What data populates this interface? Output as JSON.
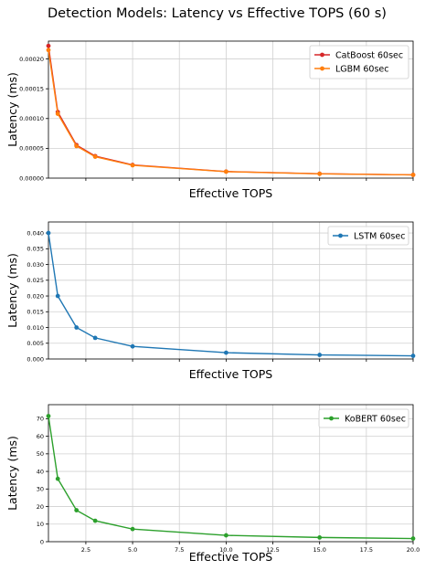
{
  "title": "Detection Models: Latency vs Effective TOPS (60 s)",
  "colors": {
    "catboost": "#d62728",
    "lgbm": "#ff7f0e",
    "lstm": "#1f77b4",
    "kobert": "#2ca02c"
  },
  "chart_data": [
    {
      "type": "line",
      "xlabel": "Effective TOPS",
      "ylabel": "Latency (ms)",
      "xlim": [
        0.5,
        20
      ],
      "ylim": [
        0,
        0.00023
      ],
      "x_ticks": [
        2.5,
        5.0,
        7.5,
        10.0,
        12.5,
        15.0,
        17.5,
        20.0
      ],
      "x_tick_labels": [],
      "y_ticks": [
        0,
        5e-05,
        0.0001,
        0.00015,
        0.0002
      ],
      "y_tick_labels": [
        "0.00000",
        "0.00005",
        "0.00010",
        "0.00015",
        "0.00020"
      ],
      "grid": true,
      "legend": "top-right",
      "series": [
        {
          "name": "CatBoost 60sec",
          "color": "#d62728",
          "x": [
            0.5,
            1,
            2,
            3,
            5,
            10,
            15,
            20
          ],
          "values": [
            0.000222,
            0.000111,
            5.55e-05,
            3.7e-05,
            2.22e-05,
            1.11e-05,
            7.4e-06,
            5.5e-06
          ]
        },
        {
          "name": "LGBM 60sec",
          "color": "#ff7f0e",
          "x": [
            0.5,
            1,
            2,
            3,
            5,
            10,
            15,
            20
          ],
          "values": [
            0.000215,
            0.000108,
            5.38e-05,
            3.59e-05,
            2.15e-05,
            1.08e-05,
            7.2e-06,
            5.4e-06
          ]
        }
      ]
    },
    {
      "type": "line",
      "xlabel": "Effective TOPS",
      "ylabel": "Latency (ms)",
      "xlim": [
        0.5,
        20
      ],
      "ylim": [
        0,
        0.0435
      ],
      "x_ticks": [
        2.5,
        5.0,
        7.5,
        10.0,
        12.5,
        15.0,
        17.5,
        20.0
      ],
      "x_tick_labels": [],
      "y_ticks": [
        0,
        0.005,
        0.01,
        0.015,
        0.02,
        0.025,
        0.03,
        0.035,
        0.04
      ],
      "y_tick_labels": [
        "0.000",
        "0.005",
        "0.010",
        "0.015",
        "0.020",
        "0.025",
        "0.030",
        "0.035",
        "0.040"
      ],
      "grid": true,
      "legend": "top-right",
      "series": [
        {
          "name": "LSTM 60sec",
          "color": "#1f77b4",
          "x": [
            0.5,
            1,
            2,
            3,
            5,
            10,
            15,
            20
          ],
          "values": [
            0.04,
            0.02,
            0.01,
            0.0067,
            0.004,
            0.002,
            0.0013,
            0.001
          ]
        }
      ]
    },
    {
      "type": "line",
      "xlabel": "Effective TOPS",
      "ylabel": "Latency (ms)",
      "xlim": [
        0.5,
        20
      ],
      "ylim": [
        0,
        78
      ],
      "x_ticks": [
        2.5,
        5.0,
        7.5,
        10.0,
        12.5,
        15.0,
        17.5,
        20.0
      ],
      "x_tick_labels": [
        "2.5",
        "5.0",
        "7.5",
        "10.0",
        "12.5",
        "15.0",
        "17.5",
        "20.0"
      ],
      "y_ticks": [
        0,
        10,
        20,
        30,
        40,
        50,
        60,
        70
      ],
      "y_tick_labels": [
        "0",
        "10",
        "20",
        "30",
        "40",
        "50",
        "60",
        "70"
      ],
      "grid": true,
      "legend": "top-right",
      "series": [
        {
          "name": "KoBERT 60sec",
          "color": "#2ca02c",
          "x": [
            0.5,
            1,
            2,
            3,
            5,
            10,
            15,
            20
          ],
          "values": [
            71.5,
            35.8,
            17.9,
            11.9,
            7.2,
            3.6,
            2.4,
            1.8
          ]
        }
      ]
    }
  ]
}
